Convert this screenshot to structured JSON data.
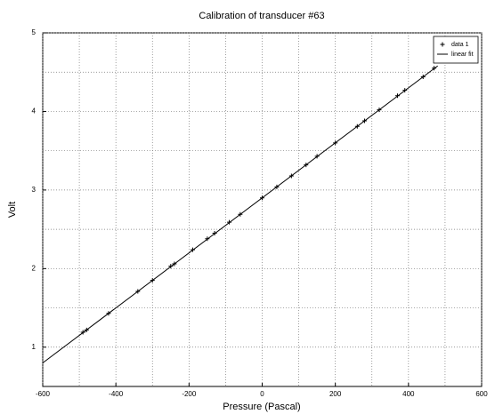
{
  "chart_data": {
    "type": "scatter",
    "title": "Calibration of transducer #63",
    "xlabel": "Pressure (Pascal)",
    "ylabel": "Volt",
    "xlim": [
      -600,
      600
    ],
    "xticks": [
      -600,
      -400,
      -200,
      0,
      200,
      400,
      600
    ],
    "xminor": [
      -500,
      -300,
      -100,
      100,
      300,
      500
    ],
    "ylim": [
      0.5,
      5
    ],
    "yticks": [
      1,
      2,
      3,
      4,
      5
    ],
    "yminor": [
      1.5,
      2.5,
      3.5,
      4.5
    ],
    "grid": true,
    "legend": "upper right",
    "series": [
      {
        "name": "data 1",
        "color": "#000000",
        "mode": "markers",
        "x": [
          -490,
          -480,
          -420,
          -340,
          -300,
          -250,
          -240,
          -190,
          -150,
          -130,
          -90,
          -60,
          0,
          40,
          80,
          120,
          150,
          200,
          260,
          280,
          320,
          370,
          390,
          440,
          470
        ],
        "values": [
          1.19,
          1.22,
          1.43,
          1.71,
          1.85,
          2.03,
          2.06,
          2.24,
          2.38,
          2.45,
          2.59,
          2.69,
          2.9,
          3.04,
          3.18,
          3.32,
          3.43,
          3.6,
          3.81,
          3.88,
          4.02,
          4.2,
          4.27,
          4.44,
          4.55
        ]
      },
      {
        "name": "linear fit",
        "color": "#000000",
        "mode": "line",
        "x": [
          -600,
          480
        ],
        "values": [
          0.8,
          4.58
        ]
      }
    ]
  }
}
